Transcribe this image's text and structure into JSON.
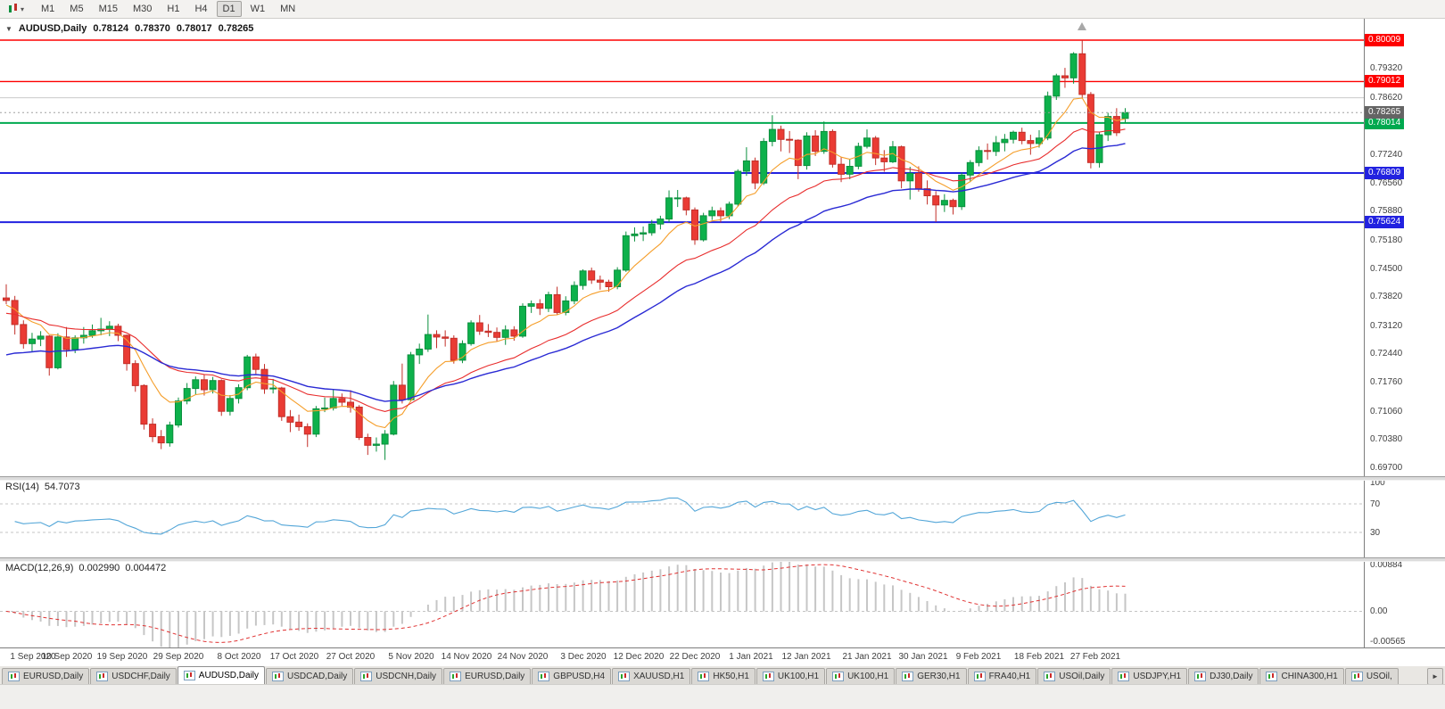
{
  "toolbar": {
    "periods": [
      "M1",
      "M5",
      "M15",
      "M30",
      "H1",
      "H4",
      "D1",
      "W1",
      "MN"
    ],
    "active_period": "D1"
  },
  "chart": {
    "title": "AUDUSD,Daily",
    "open": "0.78124",
    "high": "0.78370",
    "low": "0.78017",
    "close": "0.78265"
  },
  "chart_data": {
    "type": "candlestick",
    "symbol": "AUDUSD",
    "timeframe": "Daily",
    "colors": {
      "up": {
        "fill": "#0db14b",
        "stroke": "#0a8f3d"
      },
      "down": {
        "fill": "#ea3b34",
        "stroke": "#c22f29"
      }
    },
    "price_axis": {
      "max": 0.80503,
      "min": 0.69528,
      "ticks": [
        "0.79320",
        "0.78620",
        "0.77920",
        "0.77240",
        "0.76560",
        "0.75880",
        "0.75180",
        "0.74500",
        "0.73820",
        "0.73120",
        "0.72440",
        "0.71760",
        "0.71060",
        "0.70380",
        "0.69700"
      ]
    },
    "levels": [
      {
        "price": 0.80009,
        "label": "0.80009",
        "color": "#fe0000",
        "width": 1.4
      },
      {
        "price": 0.79012,
        "label": "0.79012",
        "color": "#fe0000",
        "width": 1.4
      },
      {
        "price": 0.78014,
        "label": "0.78014",
        "color": "#00a94f",
        "width": 2
      },
      {
        "price": 0.76809,
        "label": "0.76809",
        "color": "#2222e0",
        "width": 2
      },
      {
        "price": 0.75624,
        "label": "0.75624",
        "color": "#2222e0",
        "width": 2
      }
    ],
    "reference_line": {
      "price": 0.7862,
      "color": "#c9c9c9"
    },
    "current_price": {
      "price": 0.78265,
      "label": "0.78265",
      "line_color": "#a0a0a0",
      "label_bg": "#646464"
    },
    "moving_averages": [
      {
        "name": "ma-fast",
        "period": 8,
        "seed": 0.736,
        "color": "#f59e2a",
        "width": 1.1
      },
      {
        "name": "ma-medium",
        "period": 21,
        "seed": 0.734,
        "color": "#e82c2c",
        "width": 1.1
      },
      {
        "name": "ma-slow",
        "period": 34,
        "seed": 0.7235,
        "color": "#2a2ad4",
        "width": 1.4
      }
    ],
    "x_labels": [
      "1 Sep 2020",
      "10 Sep 2020",
      "19 Sep 2020",
      "29 Sep 2020",
      "8 Oct 2020",
      "17 Oct 2020",
      "27 Oct 2020",
      "5 Nov 2020",
      "14 Nov 2020",
      "24 Nov 2020",
      "3 Dec 2020",
      "12 Dec 2020",
      "22 Dec 2020",
      "1 Jan 2021",
      "12 Jan 2021",
      "21 Jan 2021",
      "30 Jan 2021",
      "9 Feb 2021",
      "18 Feb 2021",
      "27 Feb 2021"
    ],
    "x_label_bars": [
      0,
      7,
      13.5,
      20,
      27,
      33.5,
      40,
      47,
      53.5,
      60,
      67,
      73.5,
      80,
      86.5,
      93,
      100,
      106.5,
      113,
      120,
      126.5
    ],
    "candles": [
      [
        0.738,
        0.7413,
        0.7365,
        0.7374
      ],
      [
        0.7374,
        0.7385,
        0.7292,
        0.7316
      ],
      [
        0.7316,
        0.7326,
        0.7258,
        0.727
      ],
      [
        0.727,
        0.7296,
        0.725,
        0.7281
      ],
      [
        0.7281,
        0.73,
        0.7264,
        0.7288
      ],
      [
        0.7288,
        0.729,
        0.7193,
        0.7212
      ],
      [
        0.7212,
        0.7295,
        0.7208,
        0.7286
      ],
      [
        0.7286,
        0.731,
        0.7238,
        0.7256
      ],
      [
        0.7256,
        0.729,
        0.7247,
        0.7284
      ],
      [
        0.7284,
        0.731,
        0.727,
        0.729
      ],
      [
        0.729,
        0.7316,
        0.7284,
        0.7301
      ],
      [
        0.7301,
        0.7332,
        0.729,
        0.7305
      ],
      [
        0.7305,
        0.7324,
        0.7288,
        0.7312
      ],
      [
        0.7312,
        0.7318,
        0.7276,
        0.729
      ],
      [
        0.729,
        0.7292,
        0.7205,
        0.7222
      ],
      [
        0.7222,
        0.723,
        0.7154,
        0.7169
      ],
      [
        0.7169,
        0.7172,
        0.7063,
        0.7076
      ],
      [
        0.7076,
        0.709,
        0.7033,
        0.7046
      ],
      [
        0.7046,
        0.7062,
        0.7016,
        0.7031
      ],
      [
        0.7031,
        0.7082,
        0.7022,
        0.7074
      ],
      [
        0.7074,
        0.714,
        0.7068,
        0.7132
      ],
      [
        0.7132,
        0.7175,
        0.7124,
        0.7162
      ],
      [
        0.7162,
        0.7191,
        0.7148,
        0.7183
      ],
      [
        0.7183,
        0.7196,
        0.7145,
        0.7159
      ],
      [
        0.7159,
        0.719,
        0.715,
        0.7181
      ],
      [
        0.7181,
        0.7184,
        0.7096,
        0.7107
      ],
      [
        0.7107,
        0.7146,
        0.7097,
        0.7138
      ],
      [
        0.7138,
        0.7172,
        0.7126,
        0.7164
      ],
      [
        0.7164,
        0.7243,
        0.7158,
        0.7238
      ],
      [
        0.7238,
        0.7246,
        0.7197,
        0.7208
      ],
      [
        0.7208,
        0.7221,
        0.7149,
        0.7161
      ],
      [
        0.7161,
        0.7185,
        0.715,
        0.7163
      ],
      [
        0.7163,
        0.7166,
        0.7084,
        0.7094
      ],
      [
        0.7094,
        0.711,
        0.7057,
        0.7081
      ],
      [
        0.7081,
        0.7099,
        0.706,
        0.707
      ],
      [
        0.707,
        0.7078,
        0.7021,
        0.7052
      ],
      [
        0.7052,
        0.712,
        0.7045,
        0.7113
      ],
      [
        0.7113,
        0.714,
        0.7105,
        0.7115
      ],
      [
        0.7115,
        0.7159,
        0.7109,
        0.7138
      ],
      [
        0.7138,
        0.715,
        0.7118,
        0.7129
      ],
      [
        0.7129,
        0.7158,
        0.7104,
        0.7117
      ],
      [
        0.7117,
        0.7122,
        0.7038,
        0.7044
      ],
      [
        0.7044,
        0.7053,
        0.7002,
        0.7025
      ],
      [
        0.7025,
        0.7044,
        0.701,
        0.7028
      ],
      [
        0.7028,
        0.7062,
        0.699,
        0.7052
      ],
      [
        0.7052,
        0.718,
        0.7049,
        0.717
      ],
      [
        0.717,
        0.7222,
        0.7126,
        0.7135
      ],
      [
        0.7135,
        0.725,
        0.713,
        0.7243
      ],
      [
        0.7243,
        0.727,
        0.7221,
        0.7257
      ],
      [
        0.7257,
        0.734,
        0.725,
        0.7292
      ],
      [
        0.7292,
        0.7302,
        0.7259,
        0.7286
      ],
      [
        0.7286,
        0.7302,
        0.7263,
        0.7283
      ],
      [
        0.7283,
        0.729,
        0.7222,
        0.723
      ],
      [
        0.723,
        0.7278,
        0.7223,
        0.727
      ],
      [
        0.727,
        0.7326,
        0.7265,
        0.732
      ],
      [
        0.732,
        0.7339,
        0.7291,
        0.73
      ],
      [
        0.73,
        0.7317,
        0.7286,
        0.7297
      ],
      [
        0.7297,
        0.7309,
        0.7276,
        0.7285
      ],
      [
        0.7285,
        0.7314,
        0.7267,
        0.7303
      ],
      [
        0.7303,
        0.7312,
        0.7277,
        0.7288
      ],
      [
        0.7288,
        0.7367,
        0.7284,
        0.736
      ],
      [
        0.736,
        0.7374,
        0.7344,
        0.7366
      ],
      [
        0.7366,
        0.7377,
        0.7339,
        0.7355
      ],
      [
        0.7355,
        0.7395,
        0.7346,
        0.7388
      ],
      [
        0.7388,
        0.7407,
        0.7339,
        0.7345
      ],
      [
        0.7345,
        0.7384,
        0.7338,
        0.7373
      ],
      [
        0.7373,
        0.742,
        0.7365,
        0.741
      ],
      [
        0.741,
        0.7449,
        0.74,
        0.7445
      ],
      [
        0.7445,
        0.7453,
        0.7414,
        0.7423
      ],
      [
        0.7423,
        0.7434,
        0.74,
        0.7418
      ],
      [
        0.7418,
        0.7424,
        0.7395,
        0.7407
      ],
      [
        0.7407,
        0.7454,
        0.7401,
        0.7447
      ],
      [
        0.7447,
        0.754,
        0.7443,
        0.753
      ],
      [
        0.753,
        0.755,
        0.7516,
        0.7534
      ],
      [
        0.7534,
        0.7552,
        0.7517,
        0.7537
      ],
      [
        0.7537,
        0.7568,
        0.753,
        0.7558
      ],
      [
        0.7558,
        0.7578,
        0.7545,
        0.757
      ],
      [
        0.757,
        0.7639,
        0.7563,
        0.7621
      ],
      [
        0.7621,
        0.764,
        0.7599,
        0.7621
      ],
      [
        0.7621,
        0.7624,
        0.7579,
        0.7592
      ],
      [
        0.7592,
        0.7598,
        0.7508,
        0.752
      ],
      [
        0.752,
        0.7585,
        0.7516,
        0.7578
      ],
      [
        0.7578,
        0.76,
        0.7568,
        0.759
      ],
      [
        0.759,
        0.7598,
        0.7562,
        0.7578
      ],
      [
        0.7578,
        0.7612,
        0.757,
        0.7606
      ],
      [
        0.7606,
        0.769,
        0.76,
        0.7685
      ],
      [
        0.7685,
        0.7743,
        0.7674,
        0.771
      ],
      [
        0.771,
        0.7718,
        0.7642,
        0.7657
      ],
      [
        0.7657,
        0.7765,
        0.7652,
        0.7757
      ],
      [
        0.7757,
        0.782,
        0.7745,
        0.7786
      ],
      [
        0.7786,
        0.7795,
        0.7733,
        0.7762
      ],
      [
        0.7762,
        0.7782,
        0.7729,
        0.776
      ],
      [
        0.776,
        0.7762,
        0.7666,
        0.7699
      ],
      [
        0.7699,
        0.7779,
        0.7689,
        0.777
      ],
      [
        0.777,
        0.7784,
        0.7722,
        0.7733
      ],
      [
        0.7733,
        0.7805,
        0.7727,
        0.7781
      ],
      [
        0.7781,
        0.7786,
        0.7694,
        0.7702
      ],
      [
        0.7702,
        0.7719,
        0.7659,
        0.7678
      ],
      [
        0.7678,
        0.7714,
        0.7666,
        0.7697
      ],
      [
        0.7697,
        0.7754,
        0.769,
        0.7745
      ],
      [
        0.7745,
        0.7786,
        0.774,
        0.7765
      ],
      [
        0.7765,
        0.777,
        0.77,
        0.7717
      ],
      [
        0.7717,
        0.7736,
        0.7684,
        0.7708
      ],
      [
        0.7708,
        0.7758,
        0.7705,
        0.7744
      ],
      [
        0.7744,
        0.7747,
        0.7644,
        0.7662
      ],
      [
        0.7662,
        0.7696,
        0.7617,
        0.768
      ],
      [
        0.768,
        0.7697,
        0.7636,
        0.7643
      ],
      [
        0.7643,
        0.7663,
        0.7605,
        0.7626
      ],
      [
        0.7626,
        0.7637,
        0.7563,
        0.7604
      ],
      [
        0.7604,
        0.763,
        0.7587,
        0.7615
      ],
      [
        0.7615,
        0.7619,
        0.7581,
        0.76
      ],
      [
        0.76,
        0.7682,
        0.7592,
        0.7676
      ],
      [
        0.7676,
        0.7712,
        0.7659,
        0.7706
      ],
      [
        0.7706,
        0.7745,
        0.7697,
        0.7735
      ],
      [
        0.7735,
        0.7752,
        0.7713,
        0.7733
      ],
      [
        0.7733,
        0.777,
        0.7722,
        0.7754
      ],
      [
        0.7754,
        0.7775,
        0.7733,
        0.7762
      ],
      [
        0.7762,
        0.7783,
        0.7752,
        0.7779
      ],
      [
        0.7779,
        0.779,
        0.775,
        0.7759
      ],
      [
        0.7759,
        0.7773,
        0.7725,
        0.7752
      ],
      [
        0.7752,
        0.7784,
        0.7742,
        0.7765
      ],
      [
        0.7765,
        0.7877,
        0.776,
        0.7866
      ],
      [
        0.7866,
        0.792,
        0.7857,
        0.7915
      ],
      [
        0.7915,
        0.7934,
        0.7886,
        0.791
      ],
      [
        0.791,
        0.7972,
        0.7896,
        0.7968
      ],
      [
        0.7968,
        0.80009,
        0.786,
        0.787
      ],
      [
        0.787,
        0.7876,
        0.7692,
        0.7706
      ],
      [
        0.7706,
        0.778,
        0.7694,
        0.7773
      ],
      [
        0.7773,
        0.7826,
        0.7758,
        0.7817
      ],
      [
        0.7817,
        0.7837,
        0.777,
        0.7778
      ],
      [
        0.78124,
        0.7837,
        0.78017,
        0.78265
      ]
    ],
    "rsi": {
      "label": "RSI(14)",
      "value_text": "54.7073",
      "period": 14,
      "levels": [
        70,
        30
      ],
      "scale_labels": [
        {
          "value": 100,
          "text": "100"
        },
        {
          "value": 70,
          "text": "70"
        },
        {
          "value": 30,
          "text": "30"
        }
      ],
      "color": "#53a6d8"
    },
    "macd": {
      "label": "MACD(12,26,9)",
      "main_text": "0.002990",
      "signal_text": "0.004472",
      "fast": 12,
      "slow": 26,
      "signal": 9,
      "scale_max": 0.00884,
      "scale_min": -0.00565,
      "scale_labels": [
        {
          "value": 0.00884,
          "text": "0.00884"
        },
        {
          "value": 0,
          "text": "0.00"
        },
        {
          "value": -0.00565,
          "text": "-0.00565"
        }
      ],
      "hist_color": "#c6c6c6",
      "signal_color": "#e03232"
    }
  },
  "tabs_bar": {
    "active_index": 2,
    "scroll_right_label": "►",
    "tabs": [
      "EURUSD,Daily",
      "USDCHF,Daily",
      "AUDUSD,Daily",
      "USDCAD,Daily",
      "USDCNH,Daily",
      "EURUSD,Daily",
      "GBPUSD,H4",
      "XAUUSD,H1",
      "HK50,H1",
      "UK100,H1",
      "UK100,H1",
      "GER30,H1",
      "FRA40,H1",
      "USOil,Daily",
      "USDJPY,H1",
      "DJ30,Daily",
      "CHINA300,H1",
      "USOil,"
    ]
  }
}
